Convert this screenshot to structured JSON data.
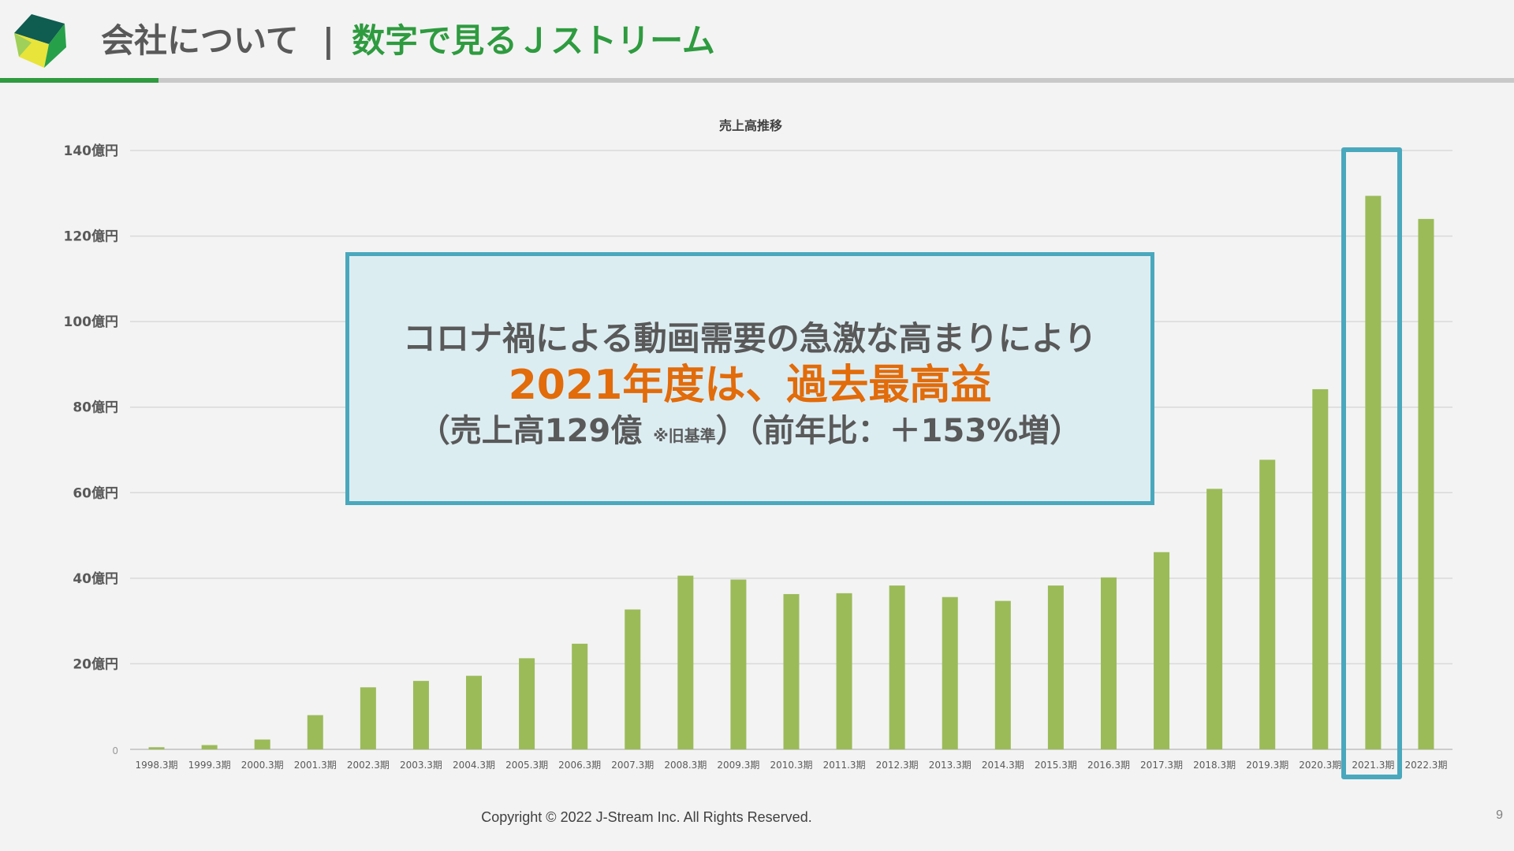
{
  "header": {
    "section": "会社について",
    "separator": "|",
    "title": "数字で見るＪストリーム"
  },
  "colors": {
    "accent_green": "#2e9b3f",
    "bar": "#9bbb59",
    "highlight": "#4aa8bd",
    "callout_accent": "#e26b0a"
  },
  "callout": {
    "line1": "コロナ禍による動画需要の急激な高まりにより",
    "line2": "2021年度は、過去最高益",
    "line3_a": "（売上高129億",
    "line3_note": "※旧基準",
    "line3_b": "）（前年比：＋153%増）"
  },
  "footer": {
    "copyright": "Copyright © 2022 J-Stream Inc. All Rights Reserved.",
    "page": "9"
  },
  "chart_data": {
    "type": "bar",
    "title": "売上高推移",
    "categories": [
      "1998.3期",
      "1999.3期",
      "2000.3期",
      "2001.3期",
      "2002.3期",
      "2003.3期",
      "2004.3期",
      "2005.3期",
      "2006.3期",
      "2007.3期",
      "2008.3期",
      "2009.3期",
      "2010.3期",
      "2011.3期",
      "2012.3期",
      "2013.3期",
      "2014.3期",
      "2015.3期",
      "2016.3期",
      "2017.3期",
      "2018.3期",
      "2019.3期",
      "2020.3期",
      "2021.3期",
      "2022.3期"
    ],
    "values": [
      0.5,
      1,
      2.3,
      8,
      14.5,
      16,
      17.2,
      21.3,
      24.7,
      32.7,
      40.6,
      39.7,
      36.3,
      36.5,
      38.3,
      35.6,
      34.7,
      38.3,
      40.2,
      46.1,
      60.9,
      67.7,
      84.2,
      129.4,
      124
    ],
    "y_ticks": [
      {
        "value": 0,
        "label": "0"
      },
      {
        "value": 20,
        "label": "20億円"
      },
      {
        "value": 40,
        "label": "40億円"
      },
      {
        "value": 60,
        "label": "60億円"
      },
      {
        "value": 80,
        "label": "80億円"
      },
      {
        "value": 100,
        "label": "100億円"
      },
      {
        "value": 120,
        "label": "120億円"
      },
      {
        "value": 140,
        "label": "140億円"
      }
    ],
    "ylim": [
      0,
      140
    ],
    "grid": true,
    "highlighted_category": "2021.3期"
  }
}
